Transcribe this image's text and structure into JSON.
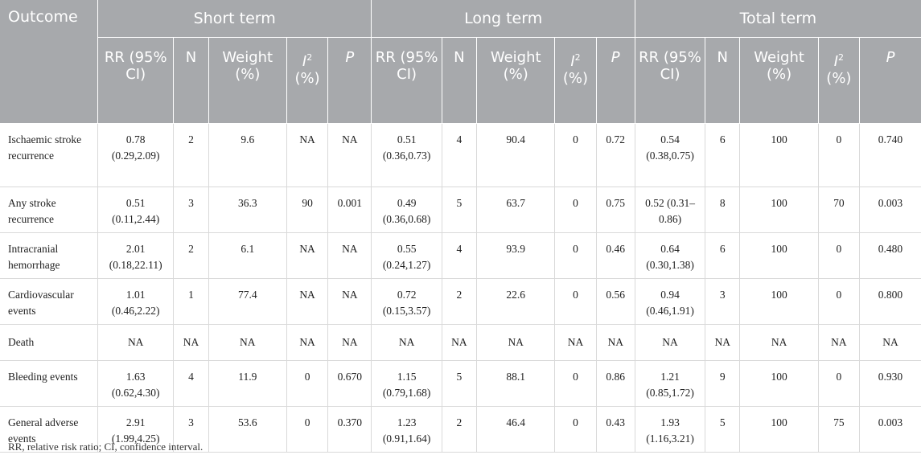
{
  "header": {
    "outcome": "Outcome",
    "groups": [
      "Short term",
      "Long term",
      "Total term"
    ],
    "columns": {
      "rr": "RR (95% CI)",
      "n": "N",
      "weight": "Weight (%)",
      "i2_symbol": "I",
      "i2_sup": "2",
      "i2_unit": "(%)",
      "p": "P"
    }
  },
  "rows": [
    {
      "outcome": "Ischaemic stroke recurrence",
      "short": [
        "0.78 (0.29,2.09)",
        "2",
        "9.6",
        "NA",
        "NA"
      ],
      "long": [
        "0.51 (0.36,0.73)",
        "4",
        "90.4",
        "0",
        "0.72"
      ],
      "total": [
        "0.54 (0.38,0.75)",
        "6",
        "100",
        "0",
        "0.740"
      ]
    },
    {
      "outcome": "Any stroke recurrence",
      "short": [
        "0.51 (0.11,2.44)",
        "3",
        "36.3",
        "90",
        "0.001"
      ],
      "long": [
        "0.49 (0.36,0.68)",
        "5",
        "63.7",
        "0",
        "0.75"
      ],
      "total": [
        "0.52 (0.31–0.86)",
        "8",
        "100",
        "70",
        "0.003"
      ]
    },
    {
      "outcome": "Intracranial hemorrhage",
      "short": [
        "2.01 (0.18,22.11)",
        "2",
        "6.1",
        "NA",
        "NA"
      ],
      "long": [
        "0.55 (0.24,1.27)",
        "4",
        "93.9",
        "0",
        "0.46"
      ],
      "total": [
        "0.64 (0.30,1.38)",
        "6",
        "100",
        "0",
        "0.480"
      ]
    },
    {
      "outcome": "Cardiovascular events",
      "short": [
        "1.01 (0.46,2.22)",
        "1",
        "77.4",
        "NA",
        "NA"
      ],
      "long": [
        "0.72 (0.15,3.57)",
        "2",
        "22.6",
        "0",
        "0.56"
      ],
      "total": [
        "0.94 (0.46,1.91)",
        "3",
        "100",
        "0",
        "0.800"
      ]
    },
    {
      "outcome": "Death",
      "short": [
        "NA",
        "NA",
        "NA",
        "NA",
        "NA"
      ],
      "long": [
        "NA",
        "NA",
        "NA",
        "NA",
        "NA"
      ],
      "total": [
        "NA",
        "NA",
        "NA",
        "NA",
        "NA"
      ]
    },
    {
      "outcome": "Bleeding events",
      "short": [
        "1.63 (0.62,4.30)",
        "4",
        "11.9",
        "0",
        "0.670"
      ],
      "long": [
        "1.15 (0.79,1.68)",
        "5",
        "88.1",
        "0",
        "0.86"
      ],
      "total": [
        "1.21 (0.85,1.72)",
        "9",
        "100",
        "0",
        "0.930"
      ]
    },
    {
      "outcome": "General adverse events",
      "short": [
        "2.91 (1.99,4.25)",
        "3",
        "53.6",
        "0",
        "0.370"
      ],
      "long": [
        "1.23 (0.91,1.64)",
        "2",
        "46.4",
        "0",
        "0.43"
      ],
      "total": [
        "1.93 (1.16,3.21)",
        "5",
        "100",
        "75",
        "0.003"
      ]
    }
  ],
  "footnote": "RR, relative risk ratio; CI, confidence interval."
}
